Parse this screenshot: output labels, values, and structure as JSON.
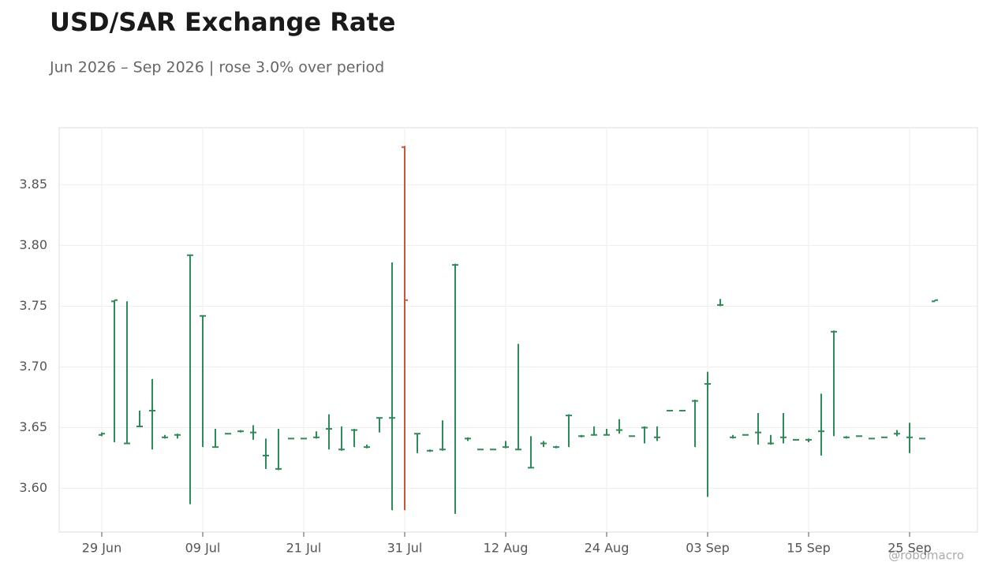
{
  "chart_data": {
    "type": "ohlc",
    "title": "USD/SAR Exchange Rate",
    "subtitle": "Jun 2026 – Sep 2026 | rose 3.0% over period",
    "watermark": "@robomacro",
    "categories": [
      "29 Jun",
      null,
      null,
      null,
      null,
      null,
      null,
      null,
      "09 Jul",
      null,
      null,
      null,
      null,
      null,
      null,
      null,
      "21 Jul",
      null,
      null,
      null,
      null,
      null,
      null,
      null,
      "31 Jul",
      null,
      null,
      null,
      null,
      null,
      null,
      null,
      "12 Aug",
      null,
      null,
      null,
      null,
      null,
      null,
      null,
      "24 Aug",
      null,
      null,
      null,
      null,
      null,
      null,
      null,
      "03 Sep",
      null,
      null,
      null,
      null,
      null,
      null,
      null,
      "15 Sep",
      null,
      null,
      null,
      null,
      null,
      null,
      null,
      "25 Sep",
      null,
      null
    ],
    "open": [
      3.644,
      3.754,
      3.637,
      3.651,
      3.664,
      3.642,
      3.644,
      3.792,
      3.742,
      3.634,
      3.645,
      3.647,
      3.646,
      3.627,
      3.616,
      3.641,
      3.641,
      3.642,
      3.649,
      3.632,
      3.648,
      3.634,
      3.658,
      3.658,
      3.881,
      3.645,
      3.631,
      3.632,
      3.784,
      3.641,
      3.632,
      3.632,
      3.634,
      3.632,
      3.617,
      3.637,
      3.634,
      3.66,
      3.643,
      3.644,
      3.644,
      3.648,
      3.643,
      3.65,
      3.642,
      3.664,
      3.664,
      3.672,
      3.686,
      3.751,
      3.642,
      3.644,
      3.646,
      3.637,
      3.642,
      3.64,
      3.64,
      3.647,
      3.729,
      3.642,
      3.643,
      3.641,
      3.642,
      3.645,
      3.642,
      3.641,
      3.754
    ],
    "high": [
      3.646,
      3.755,
      3.754,
      3.664,
      3.69,
      3.644,
      3.645,
      3.792,
      3.742,
      3.649,
      3.645,
      3.648,
      3.652,
      3.641,
      3.649,
      3.641,
      3.641,
      3.647,
      3.661,
      3.651,
      3.649,
      3.636,
      3.658,
      3.786,
      3.882,
      3.645,
      3.632,
      3.656,
      3.785,
      3.642,
      3.632,
      3.632,
      3.639,
      3.719,
      3.643,
      3.639,
      3.635,
      3.661,
      3.644,
      3.651,
      3.649,
      3.657,
      3.643,
      3.651,
      3.651,
      3.664,
      3.664,
      3.673,
      3.696,
      3.756,
      3.644,
      3.644,
      3.662,
      3.644,
      3.662,
      3.64,
      3.641,
      3.678,
      3.73,
      3.643,
      3.643,
      3.641,
      3.642,
      3.648,
      3.654,
      3.641,
      3.755
    ],
    "low": [
      3.643,
      3.638,
      3.637,
      3.651,
      3.632,
      3.641,
      3.641,
      3.587,
      3.634,
      3.634,
      3.645,
      3.646,
      3.64,
      3.616,
      3.615,
      3.641,
      3.641,
      3.641,
      3.632,
      3.631,
      3.634,
      3.633,
      3.646,
      3.582,
      3.582,
      3.629,
      3.63,
      3.631,
      3.579,
      3.639,
      3.632,
      3.632,
      3.633,
      3.632,
      3.617,
      3.634,
      3.633,
      3.634,
      3.642,
      3.644,
      3.644,
      3.645,
      3.643,
      3.637,
      3.639,
      3.664,
      3.664,
      3.634,
      3.593,
      3.75,
      3.641,
      3.644,
      3.636,
      3.636,
      3.637,
      3.64,
      3.638,
      3.627,
      3.643,
      3.641,
      3.643,
      3.641,
      3.642,
      3.643,
      3.629,
      3.641,
      3.754
    ],
    "close": [
      3.645,
      3.755,
      3.637,
      3.651,
      3.664,
      3.642,
      3.644,
      3.792,
      3.742,
      3.634,
      3.645,
      3.647,
      3.646,
      3.627,
      3.616,
      3.641,
      3.641,
      3.642,
      3.649,
      3.632,
      3.648,
      3.634,
      3.658,
      3.658,
      3.755,
      3.645,
      3.631,
      3.632,
      3.784,
      3.641,
      3.632,
      3.632,
      3.634,
      3.632,
      3.617,
      3.637,
      3.634,
      3.66,
      3.643,
      3.644,
      3.644,
      3.648,
      3.643,
      3.65,
      3.642,
      3.664,
      3.664,
      3.672,
      3.686,
      3.751,
      3.642,
      3.644,
      3.646,
      3.637,
      3.642,
      3.64,
      3.64,
      3.647,
      3.729,
      3.642,
      3.643,
      3.641,
      3.642,
      3.645,
      3.642,
      3.641,
      3.755
    ],
    "up_color": "#2e8b57",
    "down_color": "#c8573a",
    "ylim": [
      3.564,
      3.897
    ],
    "yticks": [
      {
        "value": 3.6,
        "label": "3.60"
      },
      3.65,
      {
        "value": 3.7,
        "label": "3.70"
      },
      3.75,
      {
        "value": 3.8,
        "label": "3.80"
      },
      3.85
    ],
    "grid": true
  }
}
